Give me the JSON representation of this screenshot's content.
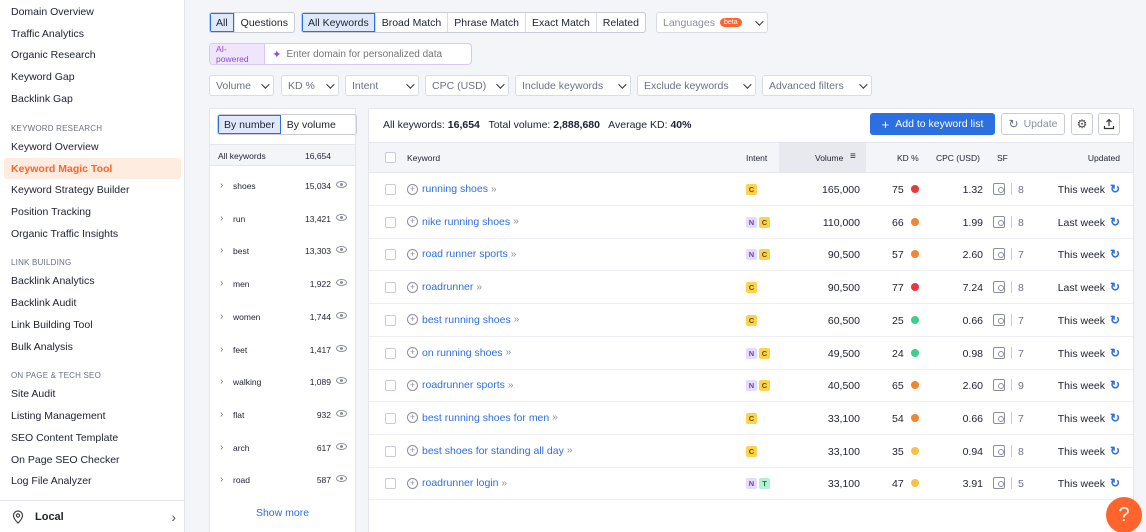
{
  "sidebar": {
    "top_items": [
      "Domain Overview",
      "Traffic Analytics",
      "Organic Research",
      "Keyword Gap",
      "Backlink Gap"
    ],
    "sections": [
      {
        "heading": "KEYWORD RESEARCH",
        "items": [
          "Keyword Overview",
          "Keyword Magic Tool",
          "Keyword Strategy Builder",
          "Position Tracking",
          "Organic Traffic Insights"
        ]
      },
      {
        "heading": "LINK BUILDING",
        "items": [
          "Backlink Analytics",
          "Backlink Audit",
          "Link Building Tool",
          "Bulk Analysis"
        ]
      },
      {
        "heading": "ON PAGE & TECH SEO",
        "items": [
          "Site Audit",
          "Listing Management",
          "SEO Content Template",
          "On Page SEO Checker",
          "Log File Analyzer"
        ]
      }
    ],
    "active_item": "Keyword Magic Tool",
    "bottom": {
      "label": "Local",
      "icon": "location-pin-icon"
    }
  },
  "filters": {
    "scope_tabs": [
      "All",
      "Questions"
    ],
    "match_tabs": [
      "All Keywords",
      "Broad Match",
      "Phrase Match",
      "Exact Match",
      "Related"
    ],
    "languages": {
      "label": "Languages",
      "badge": "beta"
    },
    "ai": {
      "badge": "AI-powered",
      "placeholder": "Enter domain for personalized data"
    },
    "dropdowns": [
      "Volume",
      "KD %",
      "Intent",
      "CPC (USD)",
      "Include keywords",
      "Exclude keywords",
      "Advanced filters"
    ]
  },
  "groups": {
    "toggle": [
      "By number",
      "By volume"
    ],
    "header": {
      "label": "All keywords",
      "count": "16,654"
    },
    "rows": [
      {
        "word": "shoes",
        "count": "15,034"
      },
      {
        "word": "run",
        "count": "13,421"
      },
      {
        "word": "best",
        "count": "13,303"
      },
      {
        "word": "men",
        "count": "1,922"
      },
      {
        "word": "women",
        "count": "1,744"
      },
      {
        "word": "feet",
        "count": "1,417"
      },
      {
        "word": "walking",
        "count": "1,089"
      },
      {
        "word": "flat",
        "count": "932"
      },
      {
        "word": "arch",
        "count": "617"
      },
      {
        "word": "road",
        "count": "587"
      }
    ],
    "show_more": "Show more"
  },
  "summary": {
    "all_label": "All keywords:",
    "all_value": "16,654",
    "vol_label": "Total volume:",
    "vol_value": "2,888,680",
    "kd_label": "Average KD:",
    "kd_value": "40%"
  },
  "actions": {
    "add": "Add to keyword list",
    "update": "Update"
  },
  "table": {
    "headers": {
      "keyword": "Keyword",
      "intent": "Intent",
      "volume": "Volume",
      "kd": "KD %",
      "cpc": "CPC (USD)",
      "sf": "SF",
      "updated": "Updated"
    },
    "rows": [
      {
        "keyword": "running shoes",
        "intents": [
          "C"
        ],
        "volume": "165,000",
        "kd": "75",
        "kd_color": "#e5393b",
        "cpc": "1.32",
        "sf": "8",
        "updated": "This week"
      },
      {
        "keyword": "nike running shoes",
        "intents": [
          "N",
          "C"
        ],
        "volume": "110,000",
        "kd": "66",
        "kd_color": "#f0862e",
        "cpc": "1.99",
        "sf": "8",
        "updated": "Last week"
      },
      {
        "keyword": "road runner sports",
        "intents": [
          "N",
          "C"
        ],
        "volume": "90,500",
        "kd": "57",
        "kd_color": "#f0862e",
        "cpc": "2.60",
        "sf": "7",
        "updated": "This week"
      },
      {
        "keyword": "roadrunner",
        "intents": [
          "C"
        ],
        "volume": "90,500",
        "kd": "77",
        "kd_color": "#e5393b",
        "cpc": "7.24",
        "sf": "8",
        "updated": "Last week"
      },
      {
        "keyword": "best running shoes",
        "intents": [
          "C"
        ],
        "volume": "60,500",
        "kd": "25",
        "kd_color": "#3ccf8e",
        "cpc": "0.66",
        "sf": "7",
        "updated": "This week"
      },
      {
        "keyword": "on running shoes",
        "intents": [
          "N",
          "C"
        ],
        "volume": "49,500",
        "kd": "24",
        "kd_color": "#3ccf8e",
        "cpc": "0.98",
        "sf": "7",
        "updated": "This week"
      },
      {
        "keyword": "roadrunner sports",
        "intents": [
          "N",
          "C"
        ],
        "volume": "40,500",
        "kd": "65",
        "kd_color": "#f0862e",
        "cpc": "2.60",
        "sf": "9",
        "updated": "This week"
      },
      {
        "keyword": "best running shoes for men",
        "intents": [
          "C"
        ],
        "volume": "33,100",
        "kd": "54",
        "kd_color": "#f0862e",
        "cpc": "0.66",
        "sf": "7",
        "updated": "This week"
      },
      {
        "keyword": "best shoes for standing all day",
        "intents": [
          "C"
        ],
        "volume": "33,100",
        "kd": "35",
        "kd_color": "#f5c244",
        "cpc": "0.94",
        "sf": "8",
        "updated": "This week"
      },
      {
        "keyword": "roadrunner login",
        "intents": [
          "N",
          "T"
        ],
        "volume": "33,100",
        "kd": "47",
        "kd_color": "#f5c244",
        "cpc": "3.91",
        "sf": "5",
        "updated": "This week"
      }
    ]
  },
  "help": "?"
}
